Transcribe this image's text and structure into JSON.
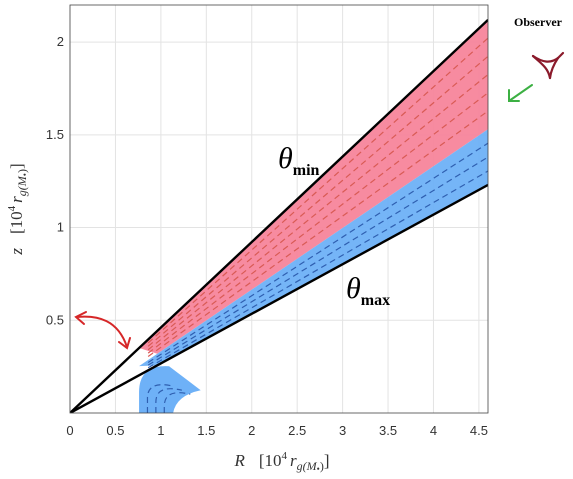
{
  "chart_data": {
    "type": "area",
    "title": "",
    "xlabel": "R   [10⁴ r_g(M•)]",
    "ylabel": "z   [10⁴ r_g(M•)]",
    "xlim": [
      0,
      4.6
    ],
    "ylim": [
      0,
      2.2
    ],
    "xticks": [
      "0",
      "0.5",
      "1",
      "1.5",
      "2",
      "2.5",
      "3",
      "3.5",
      "4",
      "4.5"
    ],
    "yticks": [
      "0.5",
      "1",
      "1.5",
      "2"
    ],
    "grid": true,
    "cone_lines": [
      {
        "name": "θmin",
        "label_main": "θ",
        "label_sub": "min",
        "x": [
          0,
          4.6
        ],
        "y": [
          0,
          2.12
        ]
      },
      {
        "name": "θmax",
        "label_main": "θ",
        "label_sub": "max",
        "x": [
          0,
          4.6
        ],
        "y": [
          0,
          1.23
        ]
      }
    ],
    "regions": [
      {
        "color": "#f7859b",
        "dash_color": "#d95b55",
        "upper_at_4_6": 2.12,
        "lower_at_4_6": 1.53,
        "dashed_lines": 5
      },
      {
        "color": "#6eb1f7",
        "dash_color": "#2f5fb0",
        "upper_at_4_6": 1.53,
        "lower_at_4_6": 1.23,
        "dashed_lines": 3
      }
    ],
    "base_region": {
      "color": "#6eb1f7",
      "dash_color": "#2f5fb0",
      "R_inner": 0.76,
      "R_outer": 1.13,
      "z_top": 0.22
    },
    "annotations": {
      "observer_text": "Observer",
      "observer_color": "#8b1a2b",
      "arrow_green": "#3cb043",
      "arrow_red": "#d62728"
    }
  }
}
